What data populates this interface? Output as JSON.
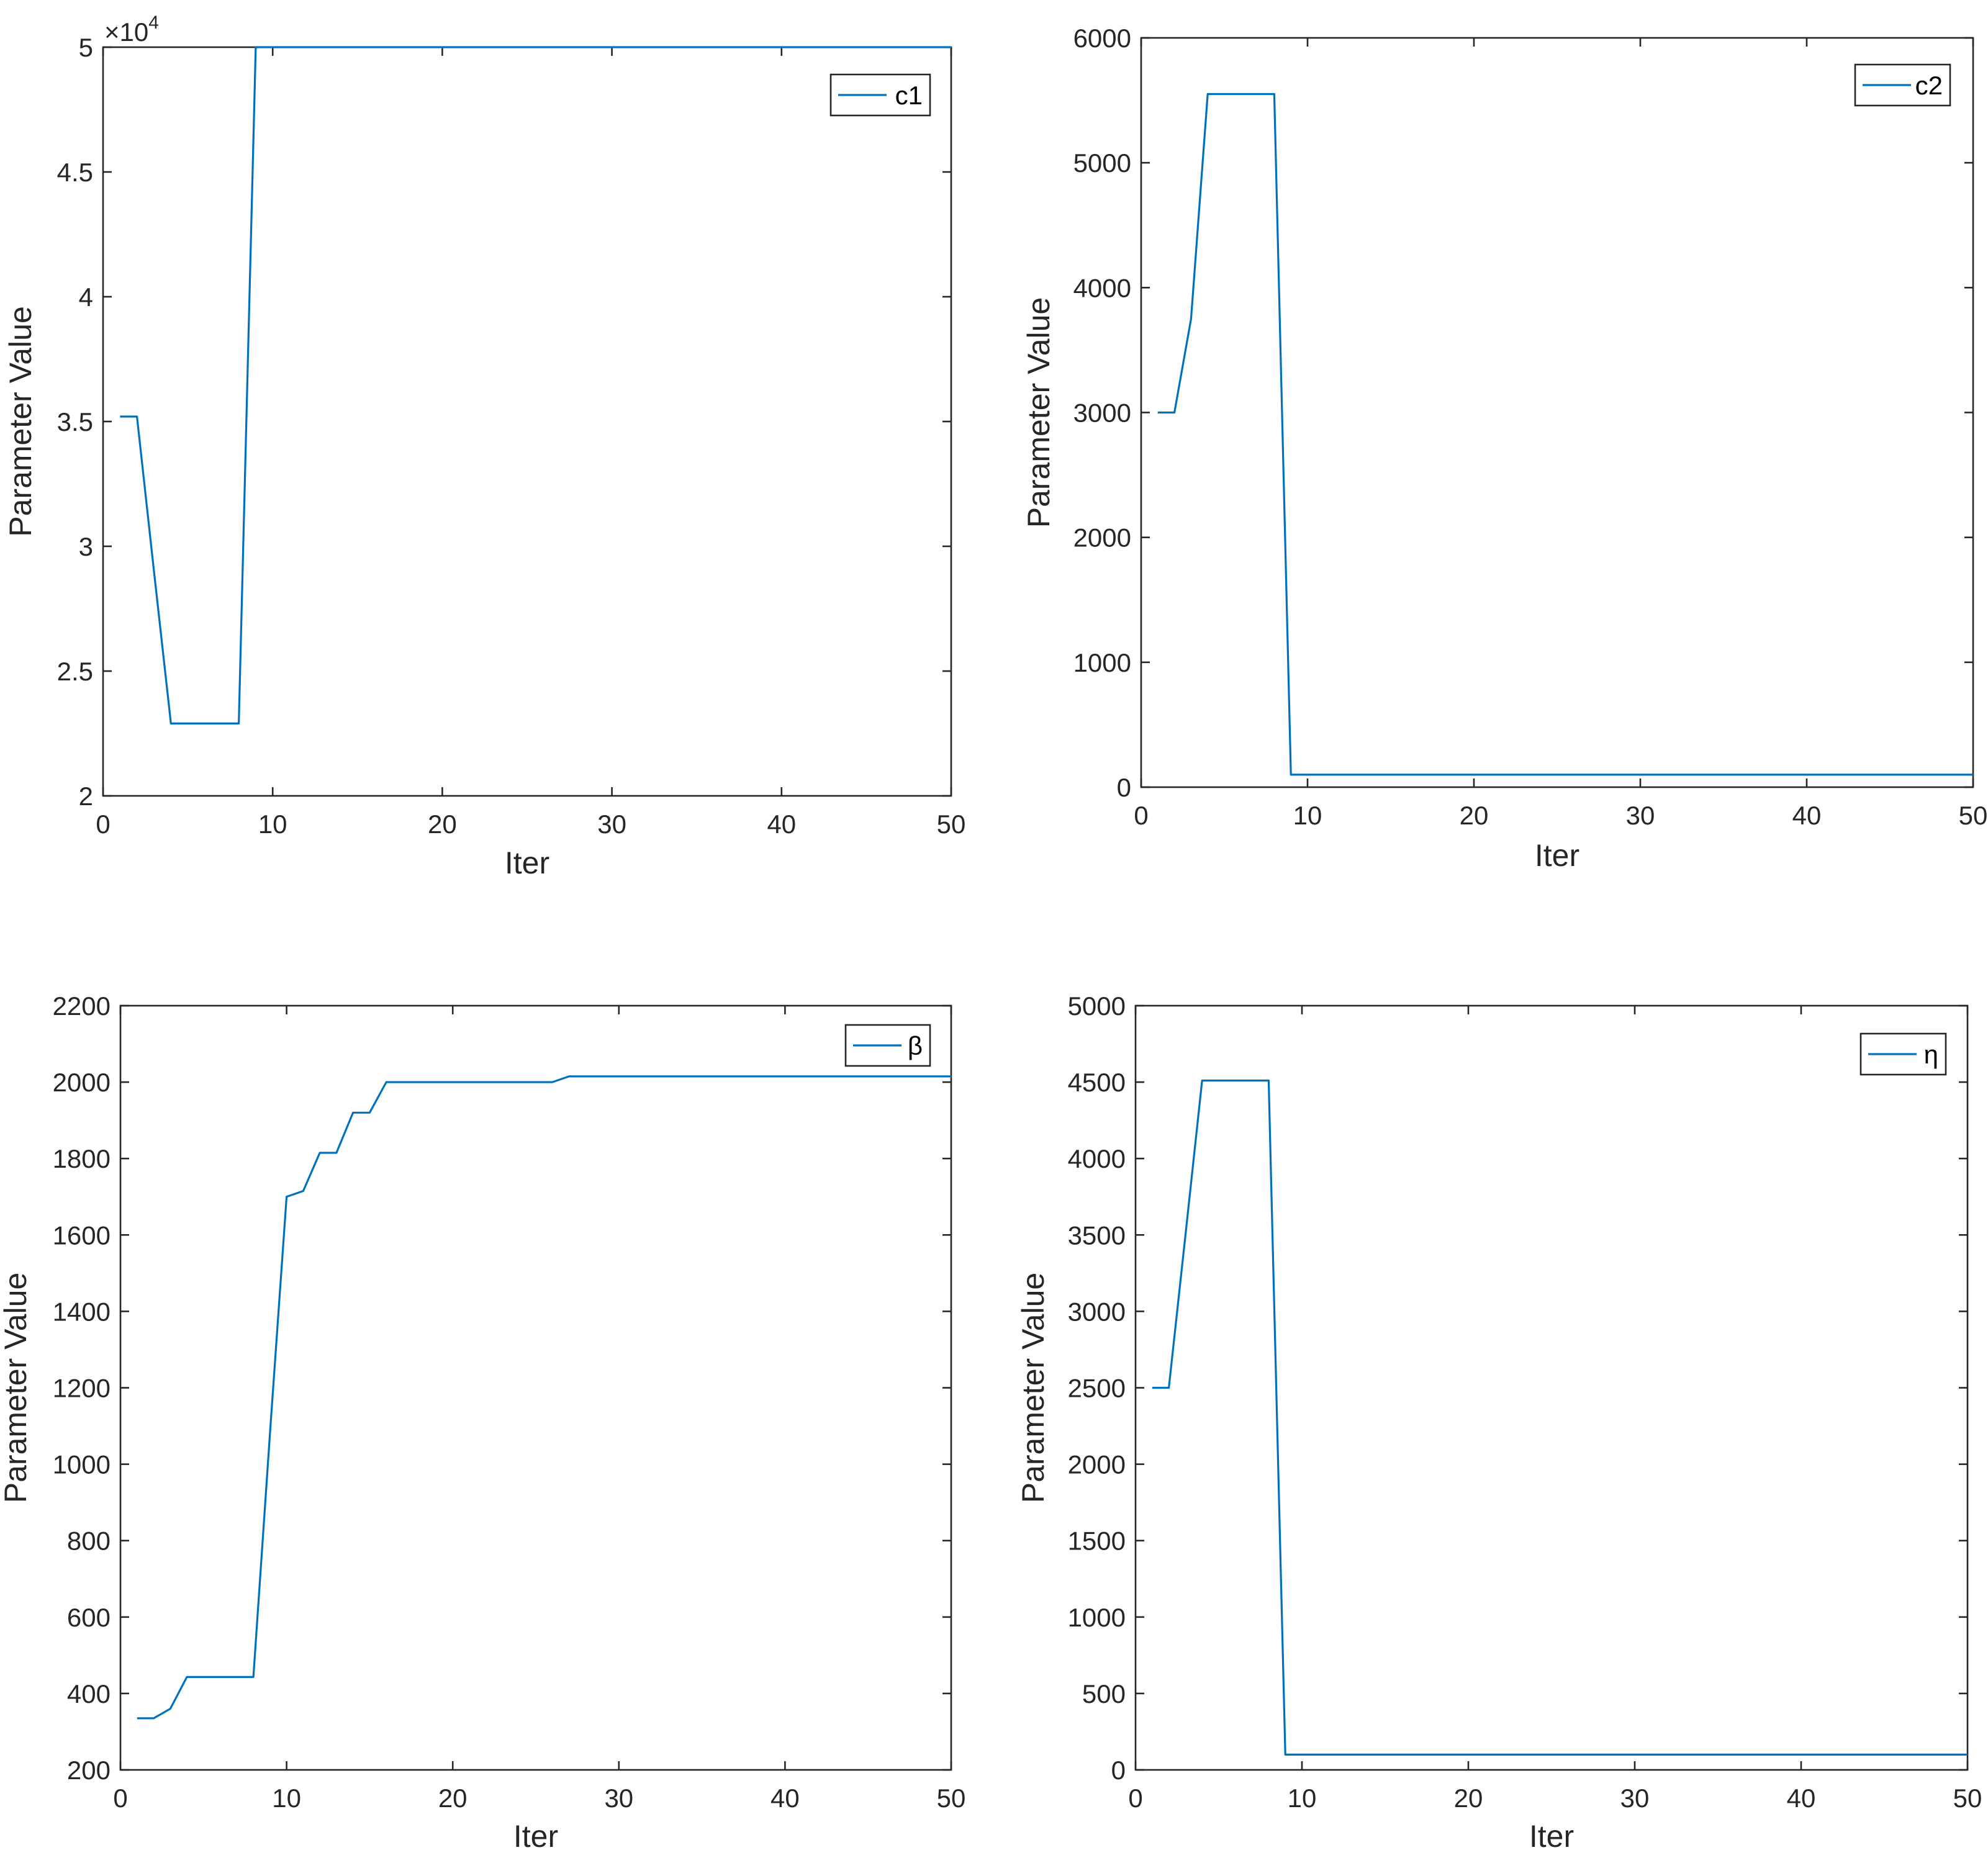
{
  "chart_data": [
    {
      "type": "line",
      "xlabel": "Iter",
      "ylabel": "Parameter Value",
      "xlim": [
        0,
        50
      ],
      "ylim": [
        20000,
        50000
      ],
      "xticks": [
        0,
        10,
        20,
        30,
        40,
        50
      ],
      "yticks": [
        20000,
        25000,
        30000,
        35000,
        40000,
        45000,
        50000
      ],
      "ytick_labels": [
        "2",
        "2.5",
        "3",
        "3.5",
        "4",
        "4.5",
        "5"
      ],
      "y_exponent_label": "×10",
      "y_exponent_power": "4",
      "legend_position": "top-right",
      "grid": false,
      "series": [
        {
          "name": "c1",
          "color": "#0072BD",
          "x": [
            1,
            2,
            3,
            4,
            5,
            6,
            7,
            8,
            9,
            10,
            11,
            12,
            13,
            14,
            15,
            16,
            17,
            18,
            19,
            20,
            21,
            22,
            23,
            24,
            25,
            26,
            27,
            28,
            29,
            30,
            31,
            32,
            33,
            34,
            35,
            36,
            37,
            38,
            39,
            40,
            41,
            42,
            43,
            44,
            45,
            46,
            47,
            48,
            49,
            50
          ],
          "y": [
            35200,
            35200,
            29000,
            22900,
            22900,
            22900,
            22900,
            22900,
            50000,
            50000,
            50000,
            50000,
            50000,
            50000,
            50000,
            50000,
            50000,
            50000,
            50000,
            50000,
            50000,
            50000,
            50000,
            50000,
            50000,
            50000,
            50000,
            50000,
            50000,
            50000,
            50000,
            50000,
            50000,
            50000,
            50000,
            50000,
            50000,
            50000,
            50000,
            50000,
            50000,
            50000,
            50000,
            50000,
            50000,
            50000,
            50000,
            50000,
            50000,
            50000
          ]
        }
      ]
    },
    {
      "type": "line",
      "xlabel": "Iter",
      "ylabel": "Parameter Value",
      "xlim": [
        0,
        50
      ],
      "ylim": [
        0,
        6000
      ],
      "xticks": [
        0,
        10,
        20,
        30,
        40,
        50
      ],
      "yticks": [
        0,
        1000,
        2000,
        3000,
        4000,
        5000,
        6000
      ],
      "ytick_labels": [
        "0",
        "1000",
        "2000",
        "3000",
        "4000",
        "5000",
        "6000"
      ],
      "legend_position": "top-right",
      "grid": false,
      "series": [
        {
          "name": "c2",
          "color": "#0072BD",
          "x": [
            1,
            2,
            3,
            4,
            5,
            6,
            7,
            8,
            9,
            10,
            11,
            12,
            13,
            14,
            15,
            16,
            17,
            18,
            19,
            20,
            21,
            22,
            23,
            24,
            25,
            26,
            27,
            28,
            29,
            30,
            31,
            32,
            33,
            34,
            35,
            36,
            37,
            38,
            39,
            40,
            41,
            42,
            43,
            44,
            45,
            46,
            47,
            48,
            49,
            50
          ],
          "y": [
            3000,
            3000,
            3750,
            5550,
            5550,
            5550,
            5550,
            5550,
            100,
            100,
            100,
            100,
            100,
            100,
            100,
            100,
            100,
            100,
            100,
            100,
            100,
            100,
            100,
            100,
            100,
            100,
            100,
            100,
            100,
            100,
            100,
            100,
            100,
            100,
            100,
            100,
            100,
            100,
            100,
            100,
            100,
            100,
            100,
            100,
            100,
            100,
            100,
            100,
            100,
            100
          ]
        }
      ]
    },
    {
      "type": "line",
      "xlabel": "Iter",
      "ylabel": "Parameter Value",
      "xlim": [
        0,
        50
      ],
      "ylim": [
        200,
        2200
      ],
      "xticks": [
        0,
        10,
        20,
        30,
        40,
        50
      ],
      "yticks": [
        200,
        400,
        600,
        800,
        1000,
        1200,
        1400,
        1600,
        1800,
        2000,
        2200
      ],
      "ytick_labels": [
        "200",
        "400",
        "600",
        "800",
        "1000",
        "1200",
        "1400",
        "1600",
        "1800",
        "2000",
        "2200"
      ],
      "legend_position": "top-right",
      "grid": false,
      "series": [
        {
          "name": "β",
          "color": "#0072BD",
          "x": [
            1,
            2,
            3,
            4,
            5,
            6,
            7,
            8,
            9,
            10,
            11,
            12,
            13,
            14,
            15,
            16,
            17,
            18,
            19,
            20,
            21,
            22,
            23,
            24,
            25,
            26,
            27,
            28,
            29,
            30,
            31,
            32,
            33,
            34,
            35,
            36,
            37,
            38,
            39,
            40,
            41,
            42,
            43,
            44,
            45,
            46,
            47,
            48,
            49,
            50
          ],
          "y": [
            335,
            335,
            360,
            443,
            443,
            443,
            443,
            443,
            1080,
            1700,
            1715,
            1815,
            1815,
            1920,
            1920,
            2000,
            2000,
            2000,
            2000,
            2000,
            2000,
            2000,
            2000,
            2000,
            2000,
            2000,
            2015,
            2015,
            2015,
            2015,
            2015,
            2015,
            2015,
            2015,
            2015,
            2015,
            2015,
            2015,
            2015,
            2015,
            2015,
            2015,
            2015,
            2015,
            2015,
            2015,
            2015,
            2015,
            2015,
            2015
          ]
        }
      ]
    },
    {
      "type": "line",
      "xlabel": "Iter",
      "ylabel": "Parameter Value",
      "xlim": [
        0,
        50
      ],
      "ylim": [
        0,
        5000
      ],
      "xticks": [
        0,
        10,
        20,
        30,
        40,
        50
      ],
      "yticks": [
        0,
        500,
        1000,
        1500,
        2000,
        2500,
        3000,
        3500,
        4000,
        4500,
        5000
      ],
      "ytick_labels": [
        "0",
        "500",
        "1000",
        "1500",
        "2000",
        "2500",
        "3000",
        "3500",
        "4000",
        "4500",
        "5000"
      ],
      "legend_position": "top-right",
      "grid": false,
      "series": [
        {
          "name": "η",
          "color": "#0072BD",
          "x": [
            1,
            2,
            3,
            4,
            5,
            6,
            7,
            8,
            9,
            10,
            11,
            12,
            13,
            14,
            15,
            16,
            17,
            18,
            19,
            20,
            21,
            22,
            23,
            24,
            25,
            26,
            27,
            28,
            29,
            30,
            31,
            32,
            33,
            34,
            35,
            36,
            37,
            38,
            39,
            40,
            41,
            42,
            43,
            44,
            45,
            46,
            47,
            48,
            49,
            50
          ],
          "y": [
            2500,
            2500,
            3500,
            4510,
            4510,
            4510,
            4510,
            4510,
            100,
            100,
            100,
            100,
            100,
            100,
            100,
            100,
            100,
            100,
            100,
            100,
            100,
            100,
            100,
            100,
            100,
            100,
            100,
            100,
            100,
            100,
            100,
            100,
            100,
            100,
            100,
            100,
            100,
            100,
            100,
            100,
            100,
            100,
            100,
            100,
            100,
            100,
            100,
            100,
            100,
            100
          ]
        }
      ]
    }
  ]
}
